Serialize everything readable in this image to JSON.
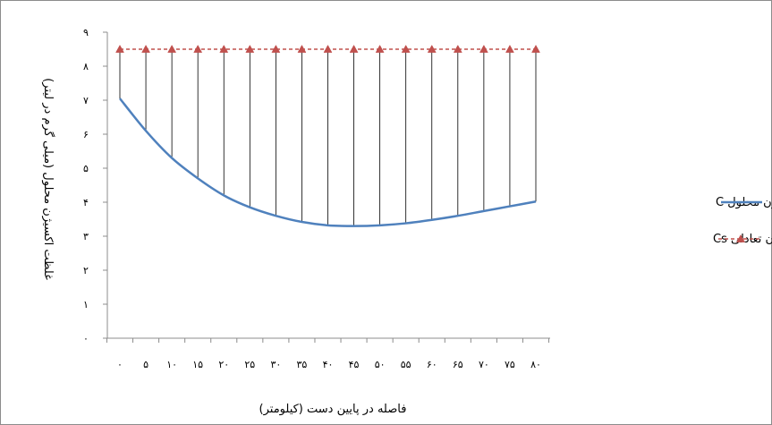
{
  "chart_data": {
    "type": "line",
    "title": "",
    "xlabel": "فاصله در پایین دست (کیلومتر)",
    "ylabel": "غلظت اکسیژن محلول (میلی گرم در لیتر)",
    "x": [
      0,
      5,
      10,
      15,
      20,
      25,
      30,
      35,
      40,
      45,
      50,
      55,
      60,
      65,
      70,
      75,
      80
    ],
    "x_tick_labels": [
      "۰",
      "۵",
      "۱۰",
      "۱۵",
      "۲۰",
      "۲۵",
      "۳۰",
      "۳۵",
      "۴۰",
      "۴۵",
      "۵۰",
      "۵۵",
      "۶۰",
      "۶۵",
      "۷۰",
      "۷۵",
      "۸۰"
    ],
    "y_tick_labels": [
      "۰",
      "۱",
      "۲",
      "۳",
      "۴",
      "۵",
      "۶",
      "۷",
      "۸",
      "۹"
    ],
    "ylim": [
      0,
      9
    ],
    "grid": false,
    "drop_lines": true,
    "legend_position": "right",
    "series": [
      {
        "name": "غلظت اکسیژن محلول C",
        "color": "#4f81bd",
        "marker": "none",
        "line_style": "solid",
        "values": [
          7.05,
          6.1,
          5.3,
          4.7,
          4.2,
          3.85,
          3.6,
          3.42,
          3.32,
          3.3,
          3.32,
          3.38,
          3.48,
          3.6,
          3.74,
          3.88,
          4.02
        ]
      },
      {
        "name": "غلظت اکسیژن تعادلی Cs",
        "color": "#c0504d",
        "marker": "triangle",
        "line_style": "dashed",
        "values": [
          8.5,
          8.5,
          8.5,
          8.5,
          8.5,
          8.5,
          8.5,
          8.5,
          8.5,
          8.5,
          8.5,
          8.5,
          8.5,
          8.5,
          8.5,
          8.5,
          8.5
        ]
      }
    ]
  }
}
